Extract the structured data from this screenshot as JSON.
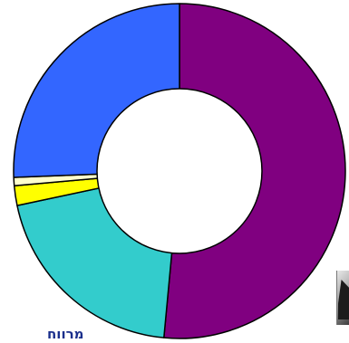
{
  "chart_data": {
    "type": "pie",
    "donut": true,
    "title": "",
    "legend": "none",
    "slices": [
      {
        "value": 51.5,
        "color": "#800080"
      },
      {
        "value": 20.2,
        "color": "#33cccc"
      },
      {
        "value": 1.9,
        "color": "#ffff00"
      },
      {
        "value": 0.8,
        "color": "#ffffcc"
      },
      {
        "value": 25.6,
        "color": "#3366ff"
      }
    ]
  },
  "caption": {
    "text": "מרווח"
  }
}
